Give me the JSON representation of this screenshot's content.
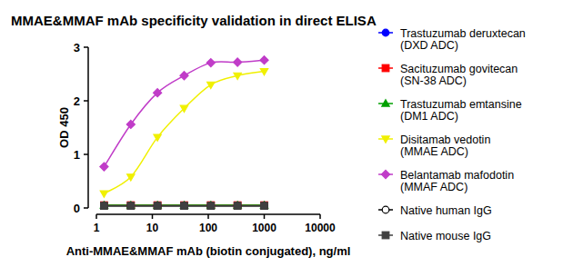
{
  "chart_data": {
    "type": "line",
    "title": "MMAE&MMAF mAb specificity validation in direct ELISA",
    "x_label": "Anti-MMAE&MMAF mAb (biotin conjugated), ng/ml",
    "y_label": "OD 450",
    "log": "x",
    "xlim": [
      1,
      10000
    ],
    "xticks": [
      1,
      10,
      100,
      1000,
      10000
    ],
    "ylim": [
      0,
      3
    ],
    "yticks": [
      0,
      1,
      2,
      3
    ],
    "x": [
      1.37,
      4.12,
      12.35,
      37.04,
      111.1,
      333.3,
      1000
    ],
    "legend": "right",
    "series": [
      {
        "name": "Trastuzumab deruxtecan (DXD ADC)",
        "color": "#0000ff",
        "marker": "circle",
        "values": [
          0.05,
          0.05,
          0.05,
          0.05,
          0.05,
          0.05,
          0.05
        ]
      },
      {
        "name": "Sacituzumab govitecan (SN-38 ADC)",
        "color": "#ff0000",
        "marker": "square",
        "values": [
          0.05,
          0.05,
          0.05,
          0.05,
          0.05,
          0.05,
          0.05
        ]
      },
      {
        "name": "Trastuzumab emtansine (DM1 ADC)",
        "color": "#00a000",
        "marker": "triangle",
        "values": [
          0.05,
          0.05,
          0.05,
          0.05,
          0.05,
          0.05,
          0.05
        ]
      },
      {
        "name": "Disitamab vedotin (MMAE ADC)",
        "color": "#f0f000",
        "marker": "triangle-down",
        "values": [
          0.27,
          0.58,
          1.32,
          1.86,
          2.3,
          2.47,
          2.55
        ]
      },
      {
        "name": "Belantamab mafodotin (MMAF ADC)",
        "color": "#c03cc8",
        "marker": "diamond",
        "values": [
          0.77,
          1.56,
          2.15,
          2.47,
          2.71,
          2.72,
          2.76
        ]
      },
      {
        "name": "Native human IgG",
        "color": "#000000",
        "marker": "circle-open",
        "values": [
          0.04,
          0.04,
          0.04,
          0.04,
          0.04,
          0.04,
          0.04
        ]
      },
      {
        "name": "Native mouse IgG",
        "color": "#404040",
        "marker": "square",
        "values": [
          0.04,
          0.04,
          0.04,
          0.04,
          0.04,
          0.04,
          0.04
        ]
      }
    ]
  }
}
